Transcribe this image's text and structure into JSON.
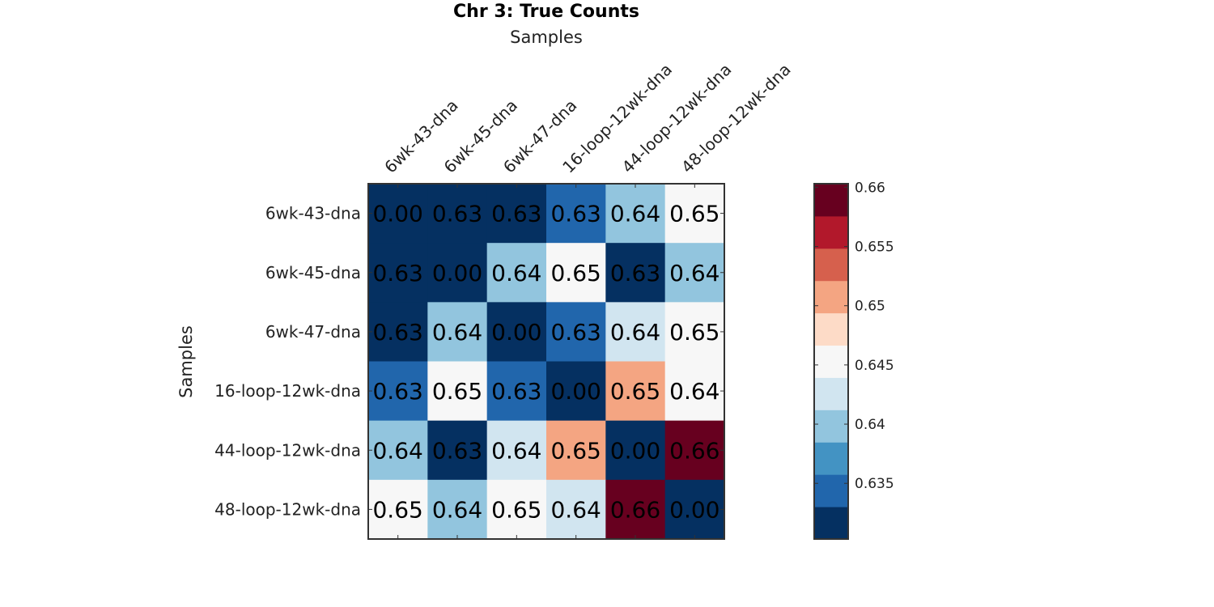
{
  "chart_data": {
    "type": "heatmap",
    "title": "Chr 3: True Counts",
    "xlabel": "Samples",
    "ylabel": "Samples",
    "x_categories": [
      "6wk-43-dna",
      "6wk-45-dna",
      "6wk-47-dna",
      "16-loop-12wk-dna",
      "44-loop-12wk-dna",
      "48-loop-12wk-dna"
    ],
    "y_categories": [
      "6wk-43-dna",
      "6wk-45-dna",
      "6wk-47-dna",
      "16-loop-12wk-dna",
      "44-loop-12wk-dna",
      "48-loop-12wk-dna"
    ],
    "values": [
      [
        0.0,
        0.63,
        0.63,
        0.63,
        0.64,
        0.65
      ],
      [
        0.63,
        0.0,
        0.64,
        0.65,
        0.63,
        0.64
      ],
      [
        0.63,
        0.64,
        0.0,
        0.63,
        0.64,
        0.65
      ],
      [
        0.63,
        0.65,
        0.63,
        0.0,
        0.65,
        0.64
      ],
      [
        0.64,
        0.63,
        0.64,
        0.65,
        0.0,
        0.66
      ],
      [
        0.65,
        0.64,
        0.65,
        0.64,
        0.66,
        0.0
      ]
    ],
    "cell_colors": [
      [
        "#053061",
        "#053061",
        "#053061",
        "#2166ac",
        "#92c5de",
        "#f7f7f7"
      ],
      [
        "#053061",
        "#053061",
        "#92c5de",
        "#f7f7f7",
        "#053061",
        "#92c5de"
      ],
      [
        "#053061",
        "#92c5de",
        "#053061",
        "#2166ac",
        "#d1e5f0",
        "#f7f7f7"
      ],
      [
        "#2166ac",
        "#f7f7f7",
        "#2166ac",
        "#053061",
        "#f4a582",
        "#f7f7f7"
      ],
      [
        "#92c5de",
        "#053061",
        "#d1e5f0",
        "#f4a582",
        "#053061",
        "#67001f"
      ],
      [
        "#f7f7f7",
        "#92c5de",
        "#f7f7f7",
        "#d1e5f0",
        "#67001f",
        "#053061"
      ]
    ],
    "value_format_decimals": 2,
    "colorbar": {
      "range": [
        0.6303,
        0.6603
      ],
      "ticks": [
        0.635,
        0.64,
        0.645,
        0.65,
        0.655,
        0.66
      ],
      "tick_labels": [
        "0.635",
        "0.64",
        "0.645",
        "0.65",
        "0.655",
        "0.66"
      ],
      "colors_bottom_to_top": [
        "#053061",
        "#2166ac",
        "#4393c3",
        "#92c5de",
        "#d1e5f0",
        "#f7f7f7",
        "#fddbc7",
        "#f4a582",
        "#d6604d",
        "#b2182b",
        "#67001f"
      ]
    }
  }
}
